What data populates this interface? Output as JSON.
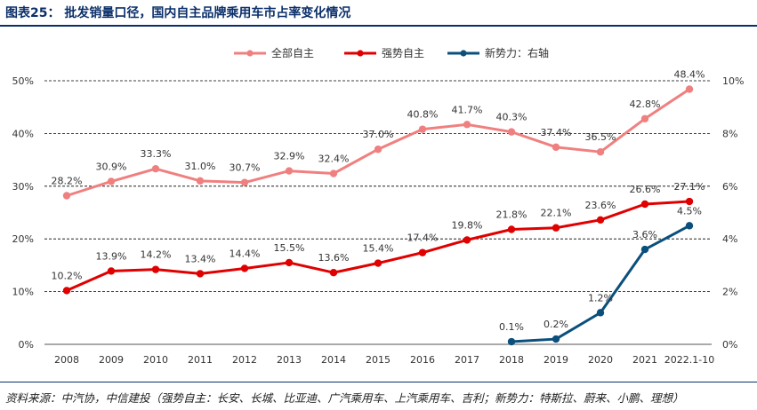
{
  "title": "图表25：  批发销量口径，国内自主品牌乘用车市占率变化情况",
  "source": "资料来源：中汽协，中信建投（强势自主：长安、长城、比亚迪、广汽乘用车、上汽乘用车、吉利；新势力：特斯拉、蔚来、小鹏、理想）",
  "chart_data": {
    "type": "line",
    "categories": [
      "2008",
      "2009",
      "2010",
      "2011",
      "2012",
      "2013",
      "2014",
      "2015",
      "2016",
      "2017",
      "2018",
      "2019",
      "2020",
      "2021",
      "2022.1-10"
    ],
    "y_left_ticks": [
      "0%",
      "10%",
      "20%",
      "30%",
      "40%",
      "50%"
    ],
    "y_right_ticks": [
      "0%",
      "2%",
      "4%",
      "6%",
      "8%",
      "10%"
    ],
    "ylim_left": [
      0,
      50
    ],
    "ylim_right": [
      0,
      10
    ],
    "grid": true,
    "legend_position": "top-center",
    "series": [
      {
        "name": "全部自主",
        "axis": "left",
        "color": "#f08080",
        "values": [
          28.2,
          30.9,
          33.3,
          31.0,
          30.7,
          32.9,
          32.4,
          37.0,
          40.8,
          41.7,
          40.3,
          37.4,
          36.5,
          42.8,
          48.4
        ],
        "labels": [
          "28.2%",
          "30.9%",
          "33.3%",
          "31.0%",
          "30.7%",
          "32.9%",
          "32.4%",
          "37.0%",
          "40.8%",
          "41.7%",
          "40.3%",
          "37.4%",
          "36.5%",
          "42.8%",
          "48.4%"
        ]
      },
      {
        "name": "强势自主",
        "axis": "left",
        "color": "#e00000",
        "values": [
          10.2,
          13.9,
          14.2,
          13.4,
          14.4,
          15.5,
          13.6,
          15.4,
          17.4,
          19.8,
          21.8,
          22.1,
          23.6,
          26.6,
          27.1
        ],
        "labels": [
          "10.2%",
          "13.9%",
          "14.2%",
          "13.4%",
          "14.4%",
          "15.5%",
          "13.6%",
          "15.4%",
          "17.4%",
          "19.8%",
          "21.8%",
          "22.1%",
          "23.6%",
          "26.6%",
          "27.1%"
        ]
      },
      {
        "name": "新势力：右轴",
        "axis": "right",
        "color": "#0b4f7c",
        "values": [
          null,
          null,
          null,
          null,
          null,
          null,
          null,
          null,
          null,
          null,
          0.1,
          0.2,
          1.2,
          3.6,
          4.5
        ],
        "labels": [
          null,
          null,
          null,
          null,
          null,
          null,
          null,
          null,
          null,
          null,
          "0.1%",
          "0.2%",
          "1.2%",
          "3.6%",
          "4.5%"
        ]
      }
    ]
  }
}
